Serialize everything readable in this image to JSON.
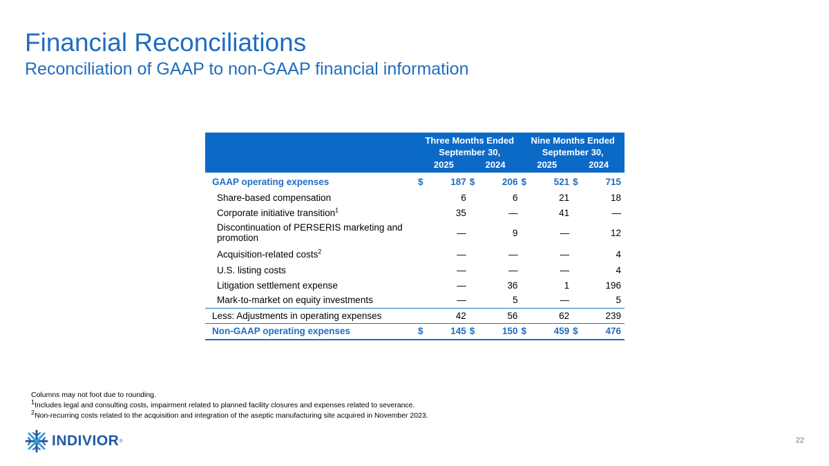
{
  "header": {
    "title": "Financial Reconciliations",
    "subtitle": "Reconciliation of GAAP to non-GAAP financial information"
  },
  "table": {
    "groups": [
      "Three Months Ended September 30,",
      "Nine Months Ended September 30,"
    ],
    "group_lines": [
      [
        "Three Months Ended",
        "September 30,"
      ],
      [
        "Nine Months Ended",
        "September 30,"
      ]
    ],
    "years": [
      "2025",
      "2024",
      "2025",
      "2024"
    ],
    "currency": "$",
    "gaap_row": {
      "label": "GAAP operating expenses",
      "values": [
        "187",
        "206",
        "521",
        "715"
      ]
    },
    "adjustments": [
      {
        "label": "Share-based compensation",
        "sup": "",
        "values": [
          "6",
          "6",
          "21",
          "18"
        ]
      },
      {
        "label": "Corporate initiative transition",
        "sup": "1",
        "values": [
          "35",
          "—",
          "41",
          "—"
        ]
      },
      {
        "label": "Discontinuation of PERSERIS marketing and promotion",
        "sup": "",
        "values": [
          "—",
          "9",
          "—",
          "12"
        ]
      },
      {
        "label": "Acquisition-related costs",
        "sup": "2",
        "values": [
          "—",
          "—",
          "—",
          "4"
        ]
      },
      {
        "label": "U.S. listing costs",
        "sup": "",
        "values": [
          "—",
          "—",
          "—",
          "4"
        ]
      },
      {
        "label": "Litigation settlement expense",
        "sup": "",
        "values": [
          "—",
          "36",
          "1",
          "196"
        ]
      },
      {
        "label": "Mark-to-market on equity investments",
        "sup": "",
        "values": [
          "—",
          "5",
          "—",
          "5"
        ]
      }
    ],
    "less_row": {
      "label": "Less: Adjustments in operating expenses",
      "values": [
        "42",
        "56",
        "62",
        "239"
      ]
    },
    "total_row": {
      "label": "Non-GAAP operating expenses",
      "values": [
        "145",
        "150",
        "459",
        "476"
      ]
    }
  },
  "footnotes": {
    "rounding": "Columns may not foot due to rounding.",
    "note1_mark": "1",
    "note1": "Includes legal and consulting costs, impairment related to planned facility closures and expenses related to severance.",
    "note2_mark": "2",
    "note2": "Non-recurring costs related to the acquisition and integration of the aseptic manufacturing site acquired in November 2023."
  },
  "brand": {
    "name": "INDIVIOR",
    "reg": "®",
    "color": "#1f5aa5",
    "accent": "#1f6cc0"
  },
  "page_number": "22"
}
